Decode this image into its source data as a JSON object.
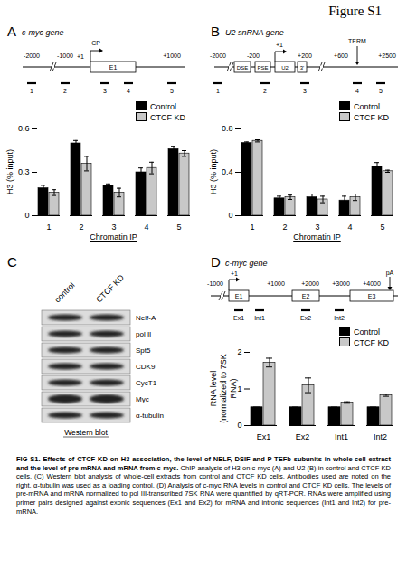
{
  "figure_label": "Figure S1",
  "chart_data": [
    {
      "panel": "A",
      "type": "bar",
      "title": "c-myc gene",
      "x_label": "Chromatin IP",
      "y_label": "H3 (% input)",
      "categories": [
        "1",
        "2",
        "3",
        "4",
        "5"
      ],
      "series": [
        {
          "name": "Control",
          "color": "#000000",
          "values": [
            0.19,
            0.5,
            0.21,
            0.3,
            0.46
          ],
          "errors": [
            0.02,
            0.02,
            0.01,
            0.03,
            0.02
          ]
        },
        {
          "name": "CTCF KD",
          "color": "#c8c8c8",
          "values": [
            0.16,
            0.36,
            0.16,
            0.33,
            0.43
          ],
          "errors": [
            0.02,
            0.05,
            0.03,
            0.04,
            0.02
          ]
        }
      ],
      "ylim": [
        0,
        0.6
      ],
      "yticks": [
        0,
        0.3,
        0.6
      ],
      "grid": false,
      "legend": "top-right"
    },
    {
      "panel": "B",
      "type": "bar",
      "title": "U2 snRNA gene",
      "x_label": "Chromatin IP",
      "y_label": "H3 (% input)",
      "categories": [
        "1",
        "2",
        "3",
        "4",
        "5"
      ],
      "series": [
        {
          "name": "Control",
          "color": "#000000",
          "values": [
            0.67,
            0.16,
            0.17,
            0.14,
            0.45
          ],
          "errors": [
            0.01,
            0.02,
            0.03,
            0.04,
            0.04
          ]
        },
        {
          "name": "CTCF KD",
          "color": "#c8c8c8",
          "values": [
            0.69,
            0.17,
            0.15,
            0.17,
            0.41
          ],
          "errors": [
            0.01,
            0.02,
            0.03,
            0.03,
            0.01
          ]
        }
      ],
      "ylim": [
        0,
        0.8
      ],
      "yticks": [
        0,
        0.4,
        0.8
      ],
      "grid": false,
      "legend": "top-right"
    },
    {
      "panel": "D",
      "type": "bar",
      "title": "c-myc gene",
      "y_label": "RNA level\n(normalized to 7SK RNA)",
      "categories": [
        "Ex1",
        "Ex2",
        "Int1",
        "Int2"
      ],
      "series": [
        {
          "name": "Control",
          "color": "#000000",
          "values": [
            0.5,
            0.5,
            0.5,
            0.5
          ],
          "errors": [
            0,
            0,
            0,
            0
          ]
        },
        {
          "name": "CTCF KD",
          "color": "#c8c8c8",
          "values": [
            1.72,
            1.1,
            0.63,
            0.83
          ],
          "errors": [
            0.12,
            0.2,
            0.02,
            0.03
          ]
        }
      ],
      "ylim": [
        0,
        2
      ],
      "yticks": [
        0,
        1,
        2
      ],
      "grid": false,
      "legend": "top-right"
    }
  ],
  "diagrams": {
    "A": {
      "positions": [
        "-2000",
        "-1000",
        "+1",
        "+1000"
      ],
      "promoter": "CP",
      "boxes": [
        "E1"
      ],
      "primers": [
        "1",
        "2",
        "3",
        "4",
        "5"
      ]
    },
    "B": {
      "positions": [
        "-2000",
        "-200",
        "+1",
        "+200",
        "+600",
        "+2500"
      ],
      "terminator": "TERM",
      "boxes": [
        "DSE",
        "PSE",
        "U2",
        "3'"
      ],
      "primers": [
        "1",
        "2",
        "3",
        "4",
        "5"
      ]
    },
    "D": {
      "positions": [
        "-1000",
        "+1",
        "+1000",
        "+2000",
        "+3000",
        "+4000"
      ],
      "polyA": "pA",
      "boxes": [
        "E1",
        "E2",
        "E3"
      ],
      "primers": [
        "Ex1",
        "Int1",
        "Ex2",
        "Int2"
      ]
    }
  },
  "western_blot": {
    "panel": "C",
    "lanes": [
      "control",
      "CTCF KD"
    ],
    "antibodies": [
      "Nelf-A",
      "pol II",
      "Spt5",
      "CDK9",
      "CycT1",
      "Myc",
      "α-tubulin"
    ],
    "label": "Western blot"
  },
  "caption": {
    "title": "FIG S1. Effects of CTCF KD on H3 association, the level of NELF, DSIF and P-TEFb subunits in whole-cell extract and the level of pre-mRNA and mRNA from c-myc.",
    "body": "ChIP analysis of H3 on c-myc (A) and U2 (B) in control and CTCF KD cells. (C) Western blot analysis of whole-cell extracts from control and CTCF KD cells. Antibodies used are noted on the right. α-tubulin was used as a loading control. (D) Analysis of c-myc RNA levels in control and CTCF KD cells. The levels of pre-mRNA and mRNA normalized to pol III-transcribed 7SK RNA were quantified by qRT-PCR. RNAs were amplified using primer pairs designed against exonic sequences (Ex1 and Ex2) for mRNA and intronic sequences (Int1 and Int2) for pre-mRNA."
  }
}
